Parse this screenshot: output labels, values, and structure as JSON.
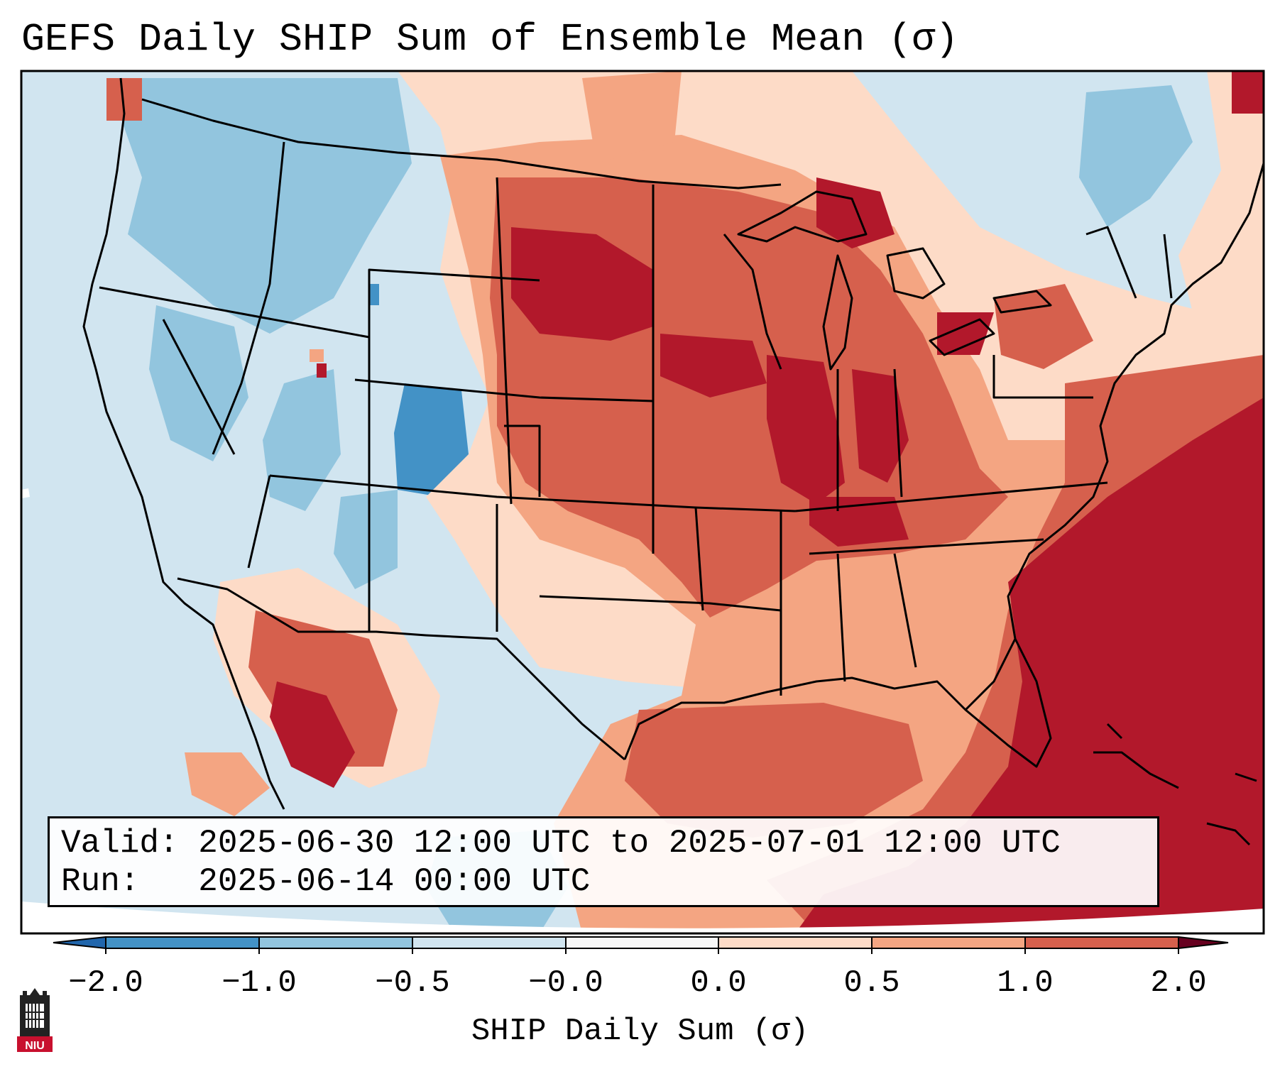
{
  "title": "GEFS Daily SHIP Sum of Ensemble Mean (σ)",
  "info": {
    "valid_label": "Valid:",
    "valid_value": "2025-06-30 12:00 UTC to 2025-07-01 12:00 UTC",
    "run_label": "Run:",
    "run_value": "2025-06-14 00:00 UTC"
  },
  "colorbar": {
    "label": "SHIP Daily Sum (σ)",
    "ticks": [
      "−2.0",
      "−1.0",
      "−0.5",
      "−0.0",
      "0.0",
      "0.5",
      "1.0",
      "2.0"
    ],
    "colors": [
      "#4392c6",
      "#92c5de",
      "#d1e5f0",
      "#f7f7f7",
      "#fddbc7",
      "#f4a582",
      "#d6604d",
      "#b2182b"
    ],
    "under_color": "#2166ac",
    "over_color": "#67001f"
  },
  "logo": {
    "text": "NIU",
    "icon": "university-tower-icon",
    "accent": "#c8102e"
  }
}
